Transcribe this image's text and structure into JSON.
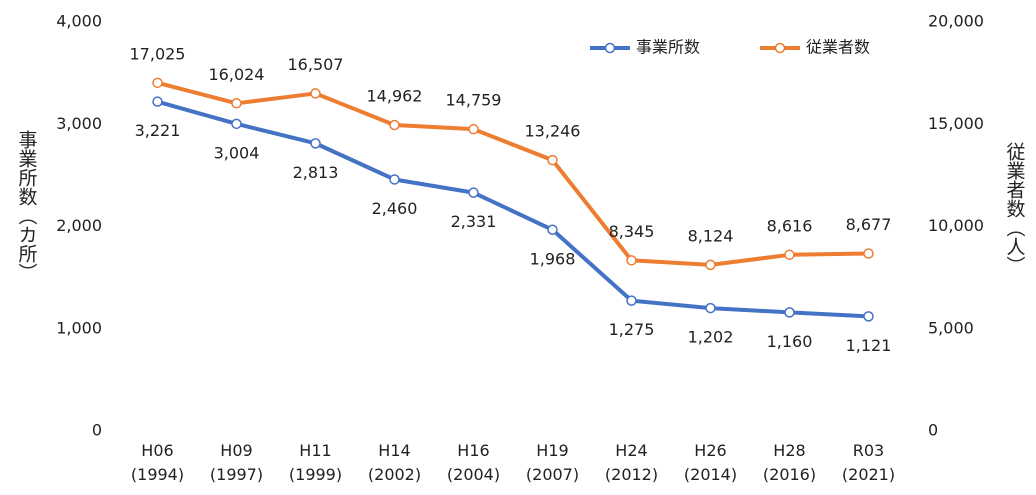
{
  "chart_data": {
    "type": "line",
    "categories": [
      "H06\n(1994)",
      "H09\n(1997)",
      "H11\n(1999)",
      "H14\n(2002)",
      "H16\n(2004)",
      "H19\n(2007)",
      "H24\n(2012)",
      "H26\n(2014)",
      "H28\n(2016)",
      "R03\n(2021)"
    ],
    "series": [
      {
        "name": "事業所数",
        "color": "#4472c4",
        "axis": "y",
        "values": [
          3221,
          3004,
          2813,
          2460,
          2331,
          1968,
          1275,
          1202,
          1160,
          1121
        ],
        "value_labels": [
          "3,221",
          "3,004",
          "2,813",
          "2,460",
          "2,331",
          "1,968",
          "1,275",
          "1,202",
          "1,160",
          "1,121"
        ]
      },
      {
        "name": "従業者数",
        "color": "#ed7d31",
        "axis": "y2",
        "values": [
          17025,
          16024,
          16507,
          14962,
          14759,
          13246,
          8345,
          8124,
          8616,
          8677
        ],
        "value_labels": [
          "17,025",
          "16,024",
          "16,507",
          "14,962",
          "14,759",
          "13,246",
          "8,345",
          "8,124",
          "8,616",
          "8,677"
        ]
      }
    ],
    "y_label": "事業所数（カ所）",
    "y2_label": "従業者数（人）",
    "ylim": [
      0,
      4000
    ],
    "yticks": [
      0,
      {
        "value": 1000,
        "label": "1,000"
      },
      {
        "value": 2000,
        "label": "2,000"
      },
      {
        "value": 3000,
        "label": "3,000"
      },
      {
        "value": 4000,
        "label": "4,000"
      }
    ],
    "y2lim": [
      0,
      20000
    ],
    "y2ticks": [
      0,
      {
        "value": 5000,
        "label": "5,000"
      },
      {
        "value": 10000,
        "label": "10,000"
      },
      {
        "value": 15000,
        "label": "15,000"
      },
      {
        "value": 20000,
        "label": "20,000"
      }
    ],
    "grid": false,
    "legend": "upper right"
  }
}
